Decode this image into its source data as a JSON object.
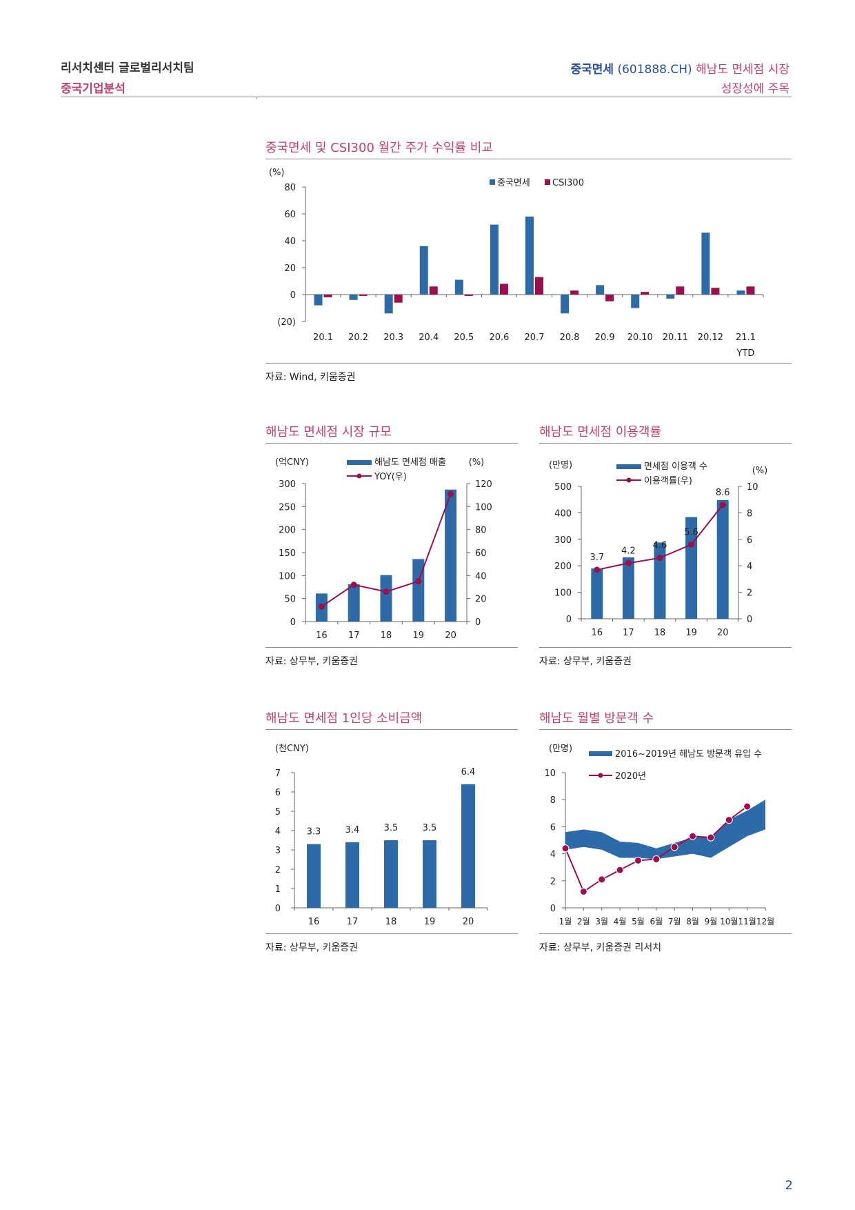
{
  "header": {
    "team": "리서치센터 글로벌리서치팀",
    "section": "중국기업분석",
    "company": "중국면세",
    "code": "(601888.CH)",
    "headline_part1": "해남도 면세점 시장",
    "headline_part2": "성장성에 주목"
  },
  "page_number": "2",
  "colors": {
    "blue": "#2e6aa7",
    "maroon": "#9b0f4e",
    "pink_title": "#c0426e",
    "navy": "#2a4f99"
  },
  "charts": {
    "c1": {
      "title": "중국면세 및 CSI300 월간 주가 수익률 비교",
      "source": "자료: Wind, 키움증권"
    },
    "c2": {
      "title": "해남도 면세점 시장 규모",
      "source": "자료: 상무부, 키움증권"
    },
    "c3": {
      "title": "해남도 면세점 이용객률",
      "source": "자료: 상무부, 키움증권"
    },
    "c4": {
      "title": "해남도 면세점 1인당 소비금액",
      "source": "자료: 상무부, 키움증권"
    },
    "c5": {
      "title": "해남도 월별 방문객 수",
      "source": "자료: 상무부, 키움증권 리서치"
    }
  },
  "chart_data": [
    {
      "id": "c1",
      "type": "bar",
      "title": "중국면세 및 CSI300 월간 주가 수익률 비교",
      "unit_left": "(%)",
      "categories": [
        "20.1",
        "20.2",
        "20.3",
        "20.4",
        "20.5",
        "20.6",
        "20.7",
        "20.8",
        "20.9",
        "20.10",
        "20.11",
        "20.12",
        "21.1\nYTD"
      ],
      "series": [
        {
          "name": "중국면세",
          "color": "#2e6aa7",
          "values": [
            -8,
            -4,
            -14,
            36,
            11,
            52,
            58,
            -14,
            7,
            -10,
            -3,
            46,
            3
          ]
        },
        {
          "name": "CSI300",
          "color": "#9b0f4e",
          "values": [
            -2,
            -1,
            -6,
            6,
            -1,
            8,
            13,
            3,
            -5,
            2,
            6,
            5,
            6
          ]
        }
      ],
      "ylim": [
        -20,
        80
      ],
      "yticks": [
        80,
        60,
        40,
        20,
        0,
        -20
      ],
      "ytick_labels": [
        "80",
        "60",
        "40",
        "20",
        "0",
        "(20)"
      ],
      "legend": "top-center"
    },
    {
      "id": "c2",
      "type": "bar+line",
      "title": "해남도 면세점 시장 규모",
      "unit_left": "(억CNY)",
      "unit_right": "(%)",
      "categories": [
        "16",
        "17",
        "18",
        "19",
        "20"
      ],
      "bars": {
        "name": "해남도 면세점 매출",
        "color": "#2e6aa7",
        "values": [
          61,
          81,
          101,
          136,
          287
        ]
      },
      "line": {
        "name": "YOY(우)",
        "color": "#9b0f4e",
        "values": [
          13,
          32,
          26,
          35,
          111
        ]
      },
      "ylim_left": [
        0,
        300
      ],
      "yticks_left": [
        300,
        250,
        200,
        150,
        100,
        50,
        0
      ],
      "ylim_right": [
        0,
        120
      ],
      "yticks_right": [
        120,
        100,
        80,
        60,
        40,
        20,
        0
      ]
    },
    {
      "id": "c3",
      "type": "bar+line",
      "title": "해남도 면세점 이용객률",
      "unit_left": "(만명)",
      "unit_right": "(%)",
      "categories": [
        "16",
        "17",
        "18",
        "19",
        "20"
      ],
      "bars": {
        "name": "면세점 이용객 수",
        "color": "#2e6aa7",
        "values": [
          190,
          232,
          288,
          384,
          448
        ]
      },
      "line": {
        "name": "이용객률(우)",
        "color": "#9b0f4e",
        "values": [
          3.7,
          4.2,
          4.6,
          5.6,
          8.6
        ],
        "labels": [
          "3.7",
          "4.2",
          "4.6",
          "5.6",
          "8.6"
        ]
      },
      "ylim_left": [
        0,
        500
      ],
      "yticks_left": [
        500,
        400,
        300,
        200,
        100,
        0
      ],
      "ylim_right": [
        0,
        10
      ],
      "yticks_right": [
        10,
        8,
        6,
        4,
        2,
        0
      ]
    },
    {
      "id": "c4",
      "type": "bar",
      "title": "해남도 면세점 1인당 소비금액",
      "unit_left": "(천CNY)",
      "categories": [
        "16",
        "17",
        "18",
        "19",
        "20"
      ],
      "values": [
        3.3,
        3.4,
        3.5,
        3.5,
        6.4
      ],
      "labels": [
        "3.3",
        "3.4",
        "3.5",
        "3.5",
        "6.4"
      ],
      "color": "#2e6aa7",
      "ylim": [
        0,
        7
      ],
      "yticks": [
        7,
        6,
        5,
        4,
        3,
        2,
        1,
        0
      ]
    },
    {
      "id": "c5",
      "type": "area",
      "title": "해남도 월별 방문객 수",
      "unit_left": "(만명)",
      "categories": [
        "1월",
        "2월",
        "3월",
        "4월",
        "5월",
        "6월",
        "7월",
        "8월",
        "9월",
        "10월",
        "11월",
        "12월"
      ],
      "band": {
        "name": "2016~2019년 해남도 방문객 유입 수",
        "color": "#2e6aa7",
        "lower": [
          4.3,
          4.5,
          4.3,
          3.7,
          3.7,
          3.6,
          3.8,
          4.0,
          3.7,
          4.5,
          5.3,
          5.8
        ],
        "upper": [
          5.6,
          5.8,
          5.6,
          4.9,
          4.8,
          4.4,
          4.8,
          5.2,
          5.3,
          6.5,
          7.2,
          8.0
        ]
      },
      "line": {
        "name": "2020년",
        "color": "#9b0f4e",
        "values": [
          4.4,
          1.2,
          2.1,
          2.8,
          3.5,
          3.6,
          4.5,
          5.3,
          5.2,
          6.5,
          7.5
        ]
      },
      "ylim": [
        0,
        10
      ],
      "yticks": [
        10,
        8,
        6,
        4,
        2,
        0
      ]
    }
  ]
}
